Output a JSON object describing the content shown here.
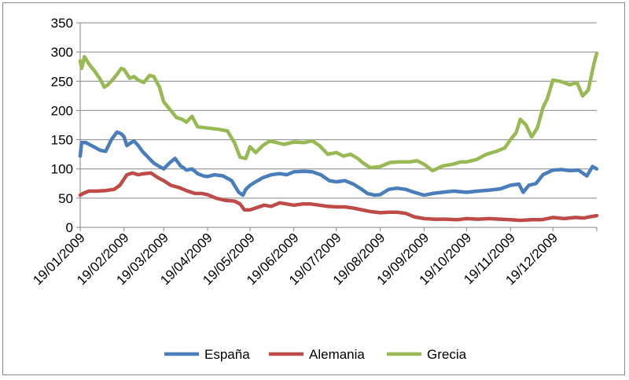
{
  "chart_data": {
    "type": "line",
    "title": "",
    "xlabel": "",
    "ylabel": "",
    "ylim": [
      0,
      350
    ],
    "yticks": [
      "0",
      "50",
      "100",
      "150",
      "200",
      "250",
      "300",
      "350"
    ],
    "xlim": [
      "2009-01-19",
      "2010-01-19"
    ],
    "xtick_labels": [
      "19/01/2009",
      "19/02/2009",
      "19/03/2009",
      "19/04/2009",
      "19/05/2009",
      "19/06/2009",
      "19/07/2009",
      "19/08/2009",
      "19/09/2009",
      "19/10/2009",
      "19/11/2009",
      "19/12/2009"
    ],
    "xtick_dates": [
      "2009-01-19",
      "2009-02-19",
      "2009-03-19",
      "2009-04-19",
      "2009-05-19",
      "2009-06-19",
      "2009-07-19",
      "2009-08-19",
      "2009-09-19",
      "2009-10-19",
      "2009-11-19",
      "2009-12-19"
    ],
    "grid": "horizontal",
    "legend_position": "bottom",
    "series": [
      {
        "name": "España",
        "color": "#4a7ebb",
        "x": [
          "2009-01-19",
          "2009-01-20",
          "2009-01-23",
          "2009-01-27",
          "2009-02-02",
          "2009-02-06",
          "2009-02-10",
          "2009-02-14",
          "2009-02-17",
          "2009-02-19",
          "2009-02-21",
          "2009-02-24",
          "2009-02-26",
          "2009-03-01",
          "2009-03-04",
          "2009-03-08",
          "2009-03-12",
          "2009-03-16",
          "2009-03-19",
          "2009-03-23",
          "2009-03-27",
          "2009-03-31",
          "2009-04-02",
          "2009-04-04",
          "2009-04-08",
          "2009-04-12",
          "2009-04-16",
          "2009-04-19",
          "2009-04-24",
          "2009-04-30",
          "2009-05-06",
          "2009-05-11",
          "2009-05-14",
          "2009-05-16",
          "2009-05-19",
          "2009-05-23",
          "2009-05-28",
          "2009-06-03",
          "2009-06-09",
          "2009-06-14",
          "2009-06-19",
          "2009-06-26",
          "2009-07-02",
          "2009-07-08",
          "2009-07-14",
          "2009-07-19",
          "2009-07-25",
          "2009-07-31",
          "2009-08-06",
          "2009-08-10",
          "2009-08-15",
          "2009-08-19",
          "2009-08-25",
          "2009-08-31",
          "2009-09-06",
          "2009-09-12",
          "2009-09-19",
          "2009-09-25",
          "2009-10-02",
          "2009-10-10",
          "2009-10-19",
          "2009-10-27",
          "2009-11-05",
          "2009-11-12",
          "2009-11-19",
          "2009-11-25",
          "2009-11-28",
          "2009-12-02",
          "2009-12-07",
          "2009-12-12",
          "2009-12-19",
          "2009-12-25",
          "2009-12-31",
          "2010-01-06",
          "2010-01-12",
          "2010-01-16",
          "2010-01-19"
        ],
        "values": [
          122,
          145,
          145,
          140,
          132,
          130,
          150,
          163,
          160,
          155,
          140,
          145,
          148,
          140,
          130,
          120,
          110,
          104,
          100,
          110,
          118,
          105,
          102,
          98,
          100,
          92,
          88,
          87,
          90,
          88,
          80,
          60,
          55,
          65,
          72,
          78,
          85,
          90,
          92,
          90,
          95,
          96,
          95,
          90,
          80,
          78,
          80,
          74,
          65,
          58,
          55,
          56,
          65,
          67,
          65,
          60,
          55,
          58,
          60,
          62,
          60,
          62,
          64,
          66,
          72,
          74,
          60,
          72,
          75,
          90,
          98,
          99,
          97,
          98,
          88,
          104,
          100
        ]
      },
      {
        "name": "Alemania",
        "color": "#be4b48",
        "x": [
          "2009-01-19",
          "2009-01-21",
          "2009-01-25",
          "2009-01-31",
          "2009-02-06",
          "2009-02-12",
          "2009-02-16",
          "2009-02-21",
          "2009-02-25",
          "2009-03-01",
          "2009-03-05",
          "2009-03-10",
          "2009-03-15",
          "2009-03-19",
          "2009-03-24",
          "2009-03-30",
          "2009-04-05",
          "2009-04-10",
          "2009-04-15",
          "2009-04-19",
          "2009-04-25",
          "2009-05-02",
          "2009-05-08",
          "2009-05-12",
          "2009-05-15",
          "2009-05-19",
          "2009-05-24",
          "2009-05-29",
          "2009-06-03",
          "2009-06-09",
          "2009-06-14",
          "2009-06-19",
          "2009-06-25",
          "2009-07-01",
          "2009-07-07",
          "2009-07-13",
          "2009-07-19",
          "2009-07-25",
          "2009-07-31",
          "2009-08-06",
          "2009-08-12",
          "2009-08-19",
          "2009-08-25",
          "2009-08-31",
          "2009-09-06",
          "2009-09-12",
          "2009-09-19",
          "2009-09-26",
          "2009-10-04",
          "2009-10-12",
          "2009-10-19",
          "2009-10-27",
          "2009-11-04",
          "2009-11-12",
          "2009-11-19",
          "2009-11-26",
          "2009-12-04",
          "2009-12-11",
          "2009-12-19",
          "2009-12-27",
          "2010-01-04",
          "2010-01-10",
          "2010-01-14",
          "2010-01-19"
        ],
        "values": [
          55,
          58,
          62,
          62,
          63,
          65,
          72,
          90,
          93,
          90,
          92,
          93,
          85,
          80,
          72,
          68,
          62,
          58,
          58,
          56,
          50,
          46,
          45,
          40,
          30,
          30,
          34,
          38,
          36,
          42,
          40,
          38,
          40,
          40,
          38,
          36,
          35,
          35,
          33,
          30,
          27,
          25,
          26,
          26,
          24,
          18,
          15,
          14,
          14,
          13,
          15,
          14,
          15,
          14,
          13,
          12,
          13,
          13,
          17,
          15,
          17,
          16,
          18,
          20
        ]
      },
      {
        "name": "Grecia",
        "color": "#98b954",
        "x": [
          "2009-01-19",
          "2009-01-20",
          "2009-01-22",
          "2009-01-25",
          "2009-01-29",
          "2009-02-02",
          "2009-02-05",
          "2009-02-07",
          "2009-02-10",
          "2009-02-14",
          "2009-02-17",
          "2009-02-19",
          "2009-02-23",
          "2009-02-26",
          "2009-03-01",
          "2009-03-05",
          "2009-03-09",
          "2009-03-12",
          "2009-03-16",
          "2009-03-19",
          "2009-03-24",
          "2009-03-28",
          "2009-04-01",
          "2009-04-04",
          "2009-04-08",
          "2009-04-12",
          "2009-04-19",
          "2009-04-26",
          "2009-05-03",
          "2009-05-08",
          "2009-05-12",
          "2009-05-16",
          "2009-05-19",
          "2009-05-23",
          "2009-05-28",
          "2009-06-02",
          "2009-06-07",
          "2009-06-12",
          "2009-06-19",
          "2009-06-26",
          "2009-07-02",
          "2009-07-07",
          "2009-07-13",
          "2009-07-19",
          "2009-07-24",
          "2009-07-29",
          "2009-08-03",
          "2009-08-07",
          "2009-08-12",
          "2009-08-19",
          "2009-08-26",
          "2009-09-02",
          "2009-09-09",
          "2009-09-14",
          "2009-09-19",
          "2009-09-25",
          "2009-10-02",
          "2009-10-09",
          "2009-10-15",
          "2009-10-19",
          "2009-10-26",
          "2009-11-02",
          "2009-11-09",
          "2009-11-15",
          "2009-11-19",
          "2009-11-23",
          "2009-11-26",
          "2009-11-30",
          "2009-12-04",
          "2009-12-08",
          "2009-12-12",
          "2009-12-15",
          "2009-12-19",
          "2009-12-24",
          "2009-12-31",
          "2010-01-05",
          "2010-01-09",
          "2010-01-13",
          "2010-01-17",
          "2010-01-19"
        ],
        "values": [
          285,
          272,
          292,
          280,
          268,
          254,
          240,
          243,
          250,
          262,
          272,
          270,
          255,
          258,
          252,
          248,
          260,
          258,
          240,
          215,
          200,
          188,
          185,
          180,
          190,
          172,
          170,
          168,
          165,
          145,
          120,
          118,
          138,
          128,
          140,
          148,
          145,
          142,
          146,
          145,
          148,
          140,
          125,
          128,
          122,
          125,
          118,
          110,
          102,
          104,
          111,
          112,
          112,
          114,
          108,
          97,
          105,
          108,
          112,
          112,
          116,
          125,
          130,
          136,
          150,
          162,
          185,
          175,
          155,
          170,
          205,
          220,
          252,
          250,
          244,
          248,
          225,
          235,
          280,
          298
        ]
      }
    ]
  }
}
